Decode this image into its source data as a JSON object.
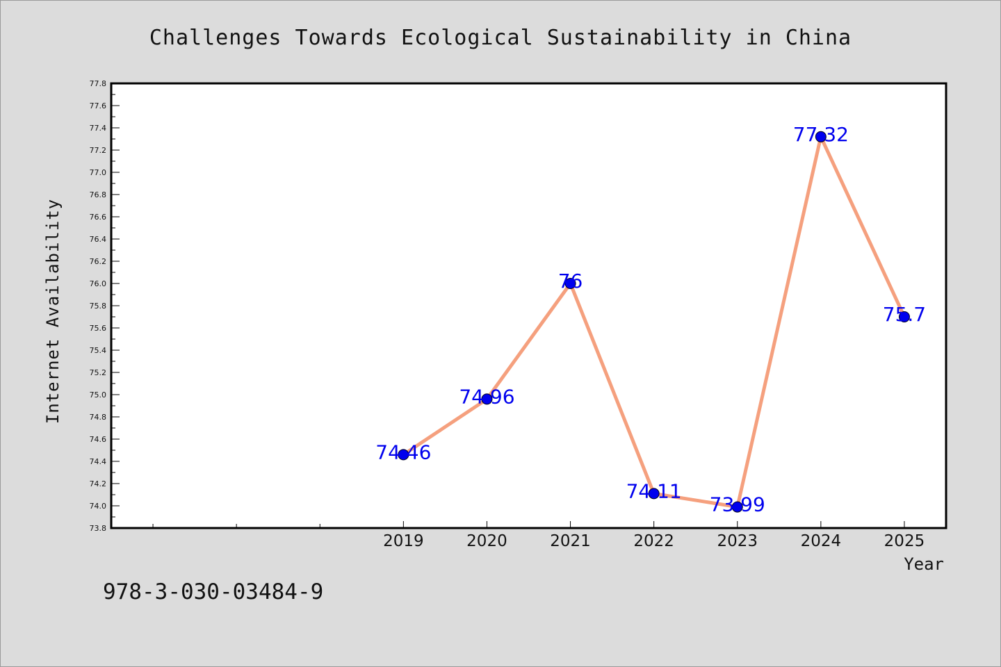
{
  "chart_data": {
    "type": "line",
    "title": "Challenges Towards Ecological Sustainability in China",
    "xlabel": "Year",
    "ylabel": "Internet Availability",
    "x": [
      2019,
      2020,
      2021,
      2022,
      2023,
      2024,
      2025
    ],
    "values": [
      74.46,
      74.96,
      76,
      74.11,
      73.99,
      77.32,
      75.7
    ],
    "data_labels": [
      "74.46",
      "74.96",
      "76",
      "74.11",
      "73.99",
      "77.32",
      "75.7"
    ],
    "ylim": [
      73.8,
      77.8
    ],
    "xlim": [
      2015.5,
      2025.5
    ],
    "y_ticks": [
      "73.8",
      "74.0",
      "74.2",
      "74.4",
      "74.6",
      "74.8",
      "75.0",
      "75.2",
      "75.4",
      "75.6",
      "75.8",
      "76.0",
      "76.2",
      "76.4",
      "76.6",
      "76.8",
      "77.0",
      "77.2",
      "77.4",
      "77.6",
      "77.8"
    ],
    "x_ticks": [
      "2019",
      "2020",
      "2021",
      "2022",
      "2023",
      "2024",
      "2025"
    ],
    "grid": false,
    "legend": "none",
    "colors": {
      "line": "#f5a07e",
      "marker": "#0000ee",
      "label": "#0000ee",
      "background": "#dcdcdc",
      "plot_background": "#ffffff"
    }
  },
  "footer": {
    "code": "978-3-030-03484-9"
  }
}
